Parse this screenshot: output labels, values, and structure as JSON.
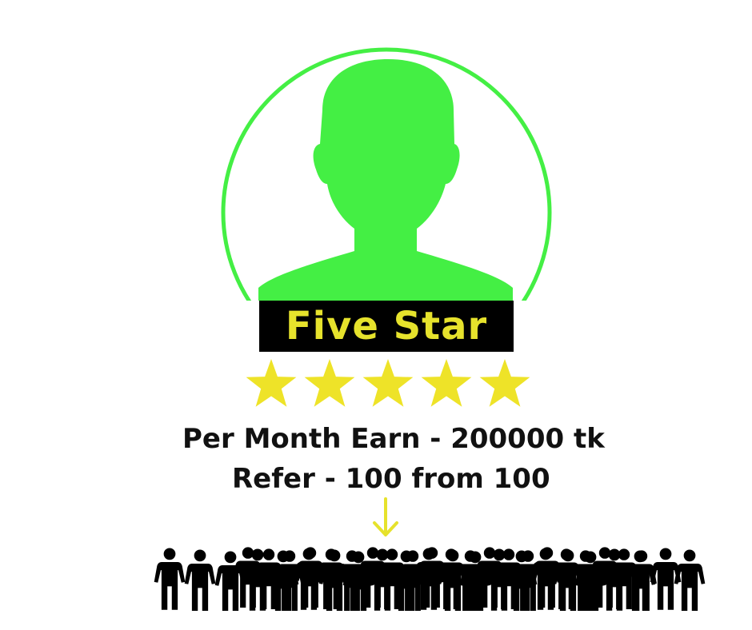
{
  "rank": {
    "title": "Five Star"
  },
  "rating": {
    "stars": 5,
    "max": 5
  },
  "earnings": {
    "line": "Per Month Earn - 200000 tk"
  },
  "referral": {
    "line": "Refer - 100 from 100"
  },
  "colors": {
    "avatar_green": "#44ef44",
    "star_yellow": "#eee328",
    "badge_bg": "#000000",
    "badge_text": "#e6e22c",
    "arrow_yellow": "#e6e22c",
    "crowd": "#000000"
  },
  "icons": {
    "avatar": "person-silhouette-icon",
    "star": "star-icon",
    "arrow": "arrow-down-icon",
    "crowd": "people-crowd-icon"
  }
}
